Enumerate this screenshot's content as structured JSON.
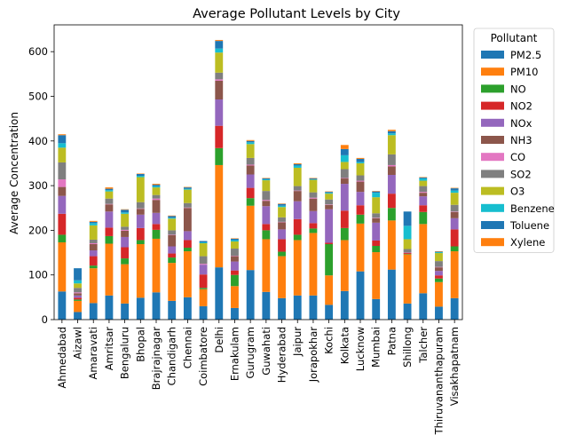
{
  "chart_data": {
    "type": "bar",
    "stacked": true,
    "title": "Average Pollutant Levels by City",
    "xlabel": "",
    "ylabel": "Average Concentration",
    "ylim": [
      0,
      660
    ],
    "yticks": [
      0,
      100,
      200,
      300,
      400,
      500,
      600
    ],
    "legend_title": "Pollutant",
    "legend_position": "outside-right",
    "categories": [
      "Ahmedabad",
      "Aizawl",
      "Amaravati",
      "Amritsar",
      "Bengaluru",
      "Bhopal",
      "Brajrajnagar",
      "Chandigarh",
      "Chennai",
      "Coimbatore",
      "Delhi",
      "Ernakulam",
      "Gurugram",
      "Guwahati",
      "Hyderabad",
      "Jaipur",
      "Jorapokhar",
      "Kochi",
      "Kolkata",
      "Lucknow",
      "Mumbai",
      "Patna",
      "Shillong",
      "Talcher",
      "Thiruvananthapuram",
      "Visakhapatnam"
    ],
    "series": [
      {
        "name": "PM2.5",
        "color": "#1f77b4",
        "values": [
          63,
          17,
          37,
          54,
          36,
          49,
          61,
          42,
          50,
          30,
          117,
          26,
          111,
          62,
          48,
          54,
          54,
          33,
          64,
          108,
          46,
          112,
          36,
          59,
          29,
          48
        ]
      },
      {
        "name": "PM10",
        "color": "#ff7f0e",
        "values": [
          110,
          25,
          78,
          116,
          88,
          120,
          120,
          85,
          103,
          38,
          229,
          49,
          144,
          118,
          94,
          124,
          140,
          66,
          114,
          107,
          105,
          110,
          110,
          155,
          55,
          105
        ]
      },
      {
        "name": "NO",
        "color": "#2ca02c",
        "values": [
          17,
          3,
          6,
          17,
          13,
          9,
          20,
          12,
          8,
          3,
          38,
          25,
          17,
          20,
          10,
          12,
          10,
          70,
          27,
          20,
          14,
          28,
          1,
          27,
          8,
          11
        ]
      },
      {
        "name": "NO2",
        "color": "#d62728",
        "values": [
          47,
          4,
          21,
          19,
          25,
          27,
          13,
          9,
          17,
          30,
          50,
          10,
          23,
          14,
          28,
          35,
          12,
          3,
          39,
          21,
          12,
          32,
          2,
          15,
          7,
          38
        ]
      },
      {
        "name": "NOx",
        "color": "#9467bd",
        "values": [
          40,
          5,
          13,
          36,
          23,
          30,
          25,
          16,
          20,
          22,
          59,
          20,
          30,
          40,
          22,
          40,
          27,
          75,
          60,
          30,
          40,
          42,
          0,
          20,
          10,
          25
        ]
      },
      {
        "name": "NH3",
        "color": "#8c564b",
        "values": [
          20,
          5,
          14,
          16,
          14,
          13,
          29,
          25,
          52,
          0,
          42,
          12,
          20,
          12,
          16,
          23,
          28,
          10,
          12,
          23,
          10,
          19,
          0,
          8,
          8,
          14
        ]
      },
      {
        "name": "CO",
        "color": "#e377c2",
        "values": [
          17,
          2,
          2,
          1,
          2,
          1,
          3,
          1,
          1,
          2,
          3,
          1,
          2,
          2,
          1,
          1,
          2,
          1,
          1,
          2,
          1,
          3,
          1,
          2,
          1,
          1
        ]
      },
      {
        "name": "SO2",
        "color": "#7f7f7f",
        "values": [
          38,
          10,
          8,
          12,
          7,
          14,
          8,
          10,
          10,
          17,
          15,
          16,
          15,
          20,
          10,
          10,
          12,
          11,
          20,
          12,
          10,
          24,
          8,
          13,
          13,
          15
        ]
      },
      {
        "name": "O3",
        "color": "#bcbd22",
        "values": [
          33,
          10,
          32,
          16,
          29,
          56,
          17,
          26,
          30,
          29,
          45,
          16,
          31,
          24,
          23,
          41,
          28,
          13,
          16,
          27,
          36,
          43,
          22,
          12,
          18,
          27
        ]
      },
      {
        "name": "Benzene",
        "color": "#17becf",
        "values": [
          10,
          7,
          5,
          3,
          3,
          3,
          3,
          2,
          2,
          2,
          9,
          3,
          4,
          2,
          3,
          5,
          1,
          2,
          15,
          3,
          10,
          4,
          30,
          5,
          2,
          5
        ]
      },
      {
        "name": "Toluene",
        "color": "#1f77b4",
        "values": [
          18,
          27,
          3,
          3,
          6,
          4,
          3,
          4,
          3,
          3,
          17,
          3,
          3,
          2,
          4,
          3,
          2,
          2,
          14,
          7,
          3,
          5,
          32,
          2,
          1,
          5
        ]
      },
      {
        "name": "Xylene",
        "color": "#ff7f0e",
        "values": [
          2,
          0,
          2,
          3,
          1,
          1,
          2,
          1,
          1,
          0,
          2,
          1,
          2,
          1,
          1,
          2,
          1,
          1,
          9,
          2,
          1,
          3,
          0,
          1,
          1,
          1
        ]
      }
    ]
  }
}
